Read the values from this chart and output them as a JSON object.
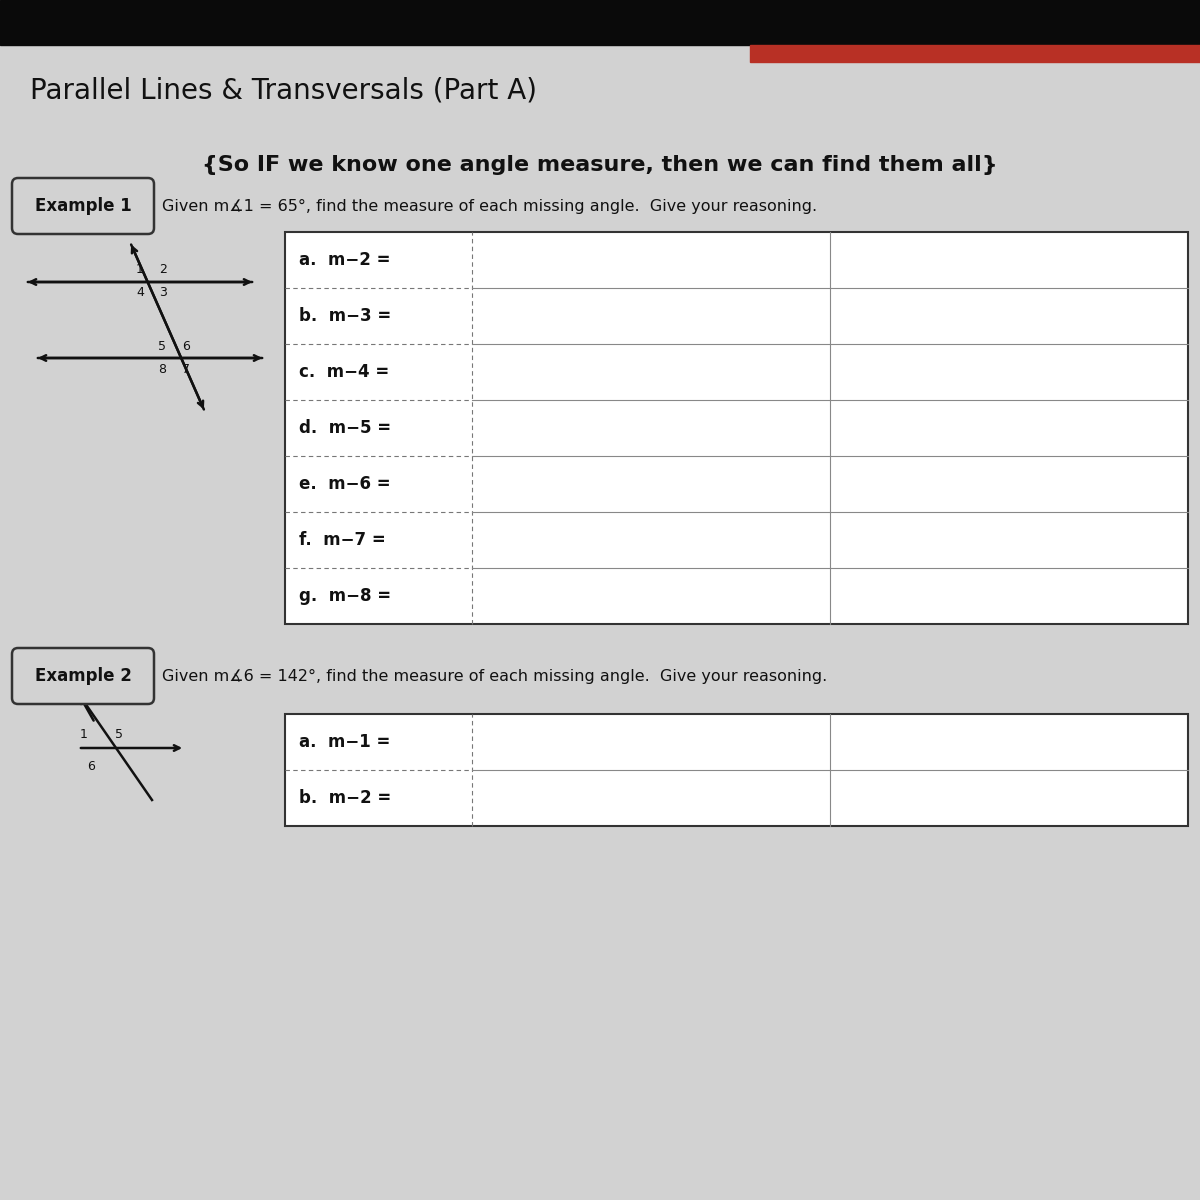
{
  "bg_top_black": "#0a0a0a",
  "bg_red_stripe": "#b83025",
  "bg_main": "#c8c8c8",
  "paper_bg": "#d2d2d2",
  "title": "Parallel Lines & Transversals (Part A)",
  "subtitle": "{So IF we know one angle measure, then we can find them all}",
  "example1_label": "Example 1",
  "example1_text": "Given m∡1 = 65°, find the measure of each missing angle.  Give your reasoning.",
  "example2_label": "Example 2",
  "example2_text": "Given m∡6 = 142°, find the measure of each missing angle.  Give your reasoning.",
  "rows_ex1": [
    "a.  m−2 =",
    "b.  m−3 =",
    "c.  m−4 =",
    "d.  m−5 =",
    "e.  m−6 =",
    "f.  m−7 =",
    "g.  m−8 ="
  ],
  "rows_ex2": [
    "a.  m−1 =",
    "b.  m−2 ="
  ],
  "title_fontsize": 20,
  "subtitle_fontsize": 16,
  "label_fontsize": 12,
  "row_fontsize": 12
}
